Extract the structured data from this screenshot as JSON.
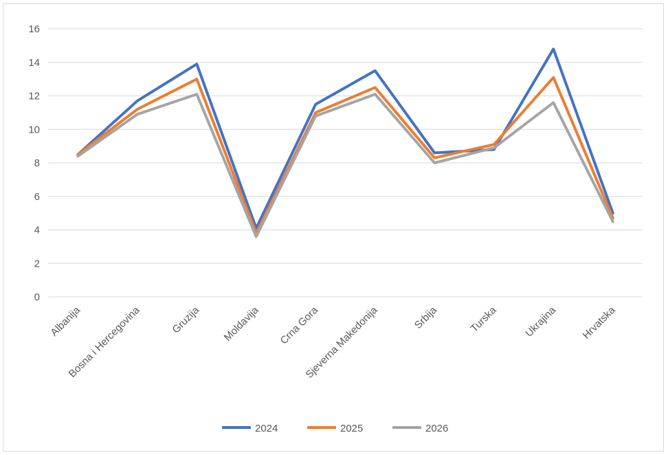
{
  "chart_data": {
    "type": "line",
    "title": "",
    "xlabel": "",
    "ylabel": "",
    "ylim": [
      0,
      16
    ],
    "y_ticks": [
      0,
      2,
      4,
      6,
      8,
      10,
      12,
      14,
      16
    ],
    "grid": true,
    "legend_position": "bottom",
    "categories": [
      "Albanija",
      "Bosna i Hercegovina",
      "Gruzija",
      "Moldavija",
      "Crna Gora",
      "Sjeverna Makedonija",
      "Srbija",
      "Turska",
      "Ukrajina",
      "Hrvatska"
    ],
    "series": [
      {
        "name": "2024",
        "color": "#4472c4",
        "values": [
          8.5,
          11.7,
          13.9,
          4.1,
          11.5,
          13.5,
          8.6,
          8.8,
          14.8,
          5.0
        ]
      },
      {
        "name": "2025",
        "color": "#ed7d31",
        "values": [
          8.5,
          11.2,
          13.0,
          3.8,
          11.0,
          12.5,
          8.3,
          9.1,
          13.1,
          4.7
        ]
      },
      {
        "name": "2026",
        "color": "#a5a5a5",
        "values": [
          8.4,
          10.9,
          12.1,
          3.6,
          10.8,
          12.1,
          8.0,
          8.9,
          11.6,
          4.5
        ]
      }
    ]
  }
}
